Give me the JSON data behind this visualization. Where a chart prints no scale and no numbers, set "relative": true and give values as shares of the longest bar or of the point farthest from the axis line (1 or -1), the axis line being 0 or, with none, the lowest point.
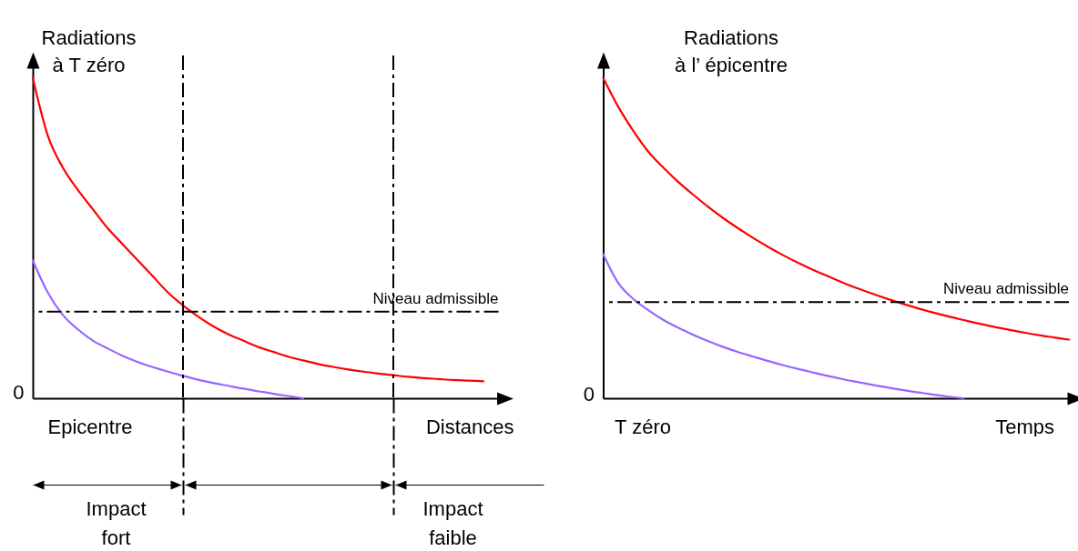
{
  "chart_data": [
    {
      "type": "line",
      "relative": true,
      "ylabel": "Radiations\nà T zéro",
      "xlabel": "Distances",
      "categories": [
        null,
        null,
        null,
        null,
        null,
        null,
        null,
        null,
        null,
        null,
        null,
        null,
        null,
        null,
        null,
        null,
        null,
        null,
        null,
        null,
        null,
        null,
        null,
        null,
        null,
        null,
        null,
        null,
        null,
        null,
        null,
        null
      ],
      "series": [
        {
          "color": "#ff0000",
          "values": [
            1.0,
            0.82,
            0.72,
            0.65,
            0.59,
            0.53,
            0.48,
            0.43,
            0.38,
            0.33,
            0.29,
            0.255,
            0.225,
            0.2,
            0.18,
            0.16,
            0.145,
            0.13,
            0.118,
            0.107,
            0.098,
            0.09,
            0.083,
            0.077,
            0.072,
            0.067,
            0.063,
            0.06,
            0.057,
            0.055,
            0.053,
            null
          ]
        },
        {
          "color": "#9966ff",
          "values": [
            0.43,
            0.33,
            0.26,
            0.215,
            0.18,
            0.155,
            0.132,
            0.113,
            0.097,
            0.083,
            0.07,
            0.058,
            0.048,
            0.039,
            0.03,
            0.022,
            0.014,
            0.007,
            0,
            null,
            null,
            null,
            null,
            null,
            null,
            null,
            null,
            null,
            null,
            null,
            null,
            null
          ]
        }
      ],
      "ref_lines": [
        {
          "axis": "y",
          "value": 0.27,
          "label": "Niveau admissible",
          "line_style": "dashed"
        }
      ],
      "annotations": [
        "0",
        "Epicentre",
        "Impact\nfort",
        "Impact\nfaible"
      ]
    },
    {
      "type": "line",
      "relative": true,
      "ylabel": "Radiations\nà l’ épicentre",
      "xlabel": "Temps",
      "categories": [
        null,
        null,
        null,
        null,
        null,
        null,
        null,
        null,
        null,
        null,
        null,
        null,
        null,
        null,
        null,
        null,
        null,
        null,
        null,
        null,
        null,
        null,
        null,
        null,
        null,
        null,
        null,
        null,
        null,
        null,
        null,
        null
      ],
      "series": [
        {
          "color": "#ff0000",
          "values": [
            1.0,
            0.91,
            0.835,
            0.77,
            0.72,
            0.675,
            0.635,
            0.597,
            0.562,
            0.53,
            0.5,
            0.472,
            0.446,
            0.422,
            0.4,
            0.38,
            0.36,
            0.342,
            0.325,
            0.309,
            0.294,
            0.28,
            0.267,
            0.255,
            0.244,
            0.233,
            0.223,
            0.214,
            0.205,
            0.197,
            0.19,
            0.183
          ]
        },
        {
          "color": "#9966ff",
          "values": [
            0.45,
            0.36,
            0.31,
            0.275,
            0.245,
            0.22,
            0.198,
            0.178,
            0.16,
            0.144,
            0.13,
            0.116,
            0.103,
            0.091,
            0.08,
            0.069,
            0.059,
            0.05,
            0.041,
            0.033,
            0.025,
            0.018,
            0.011,
            0.005,
            0,
            null,
            null,
            null,
            null,
            null,
            null,
            null
          ]
        }
      ],
      "ref_lines": [
        {
          "axis": "y",
          "value": 0.3,
          "label": "Niveau admissible",
          "line_style": "dashed"
        }
      ],
      "annotations": [
        "0",
        "T zéro"
      ]
    }
  ]
}
